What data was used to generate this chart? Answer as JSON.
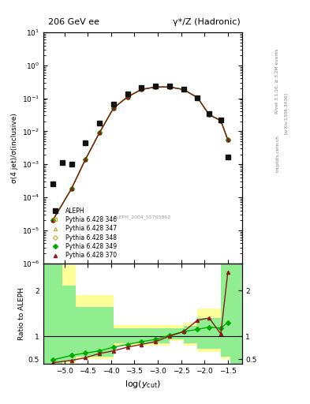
{
  "title_left": "206 GeV ee",
  "title_right": "γ*/Z (Hadronic)",
  "right_label_top": "Rivet 3.1.10, ≥ 3.2M events",
  "right_label_mid": "[arXiv:1306.3436]",
  "right_label_bot": "mcplots.cern.ch",
  "ylabel_main": "σ(4 jet)/σ(inclusive)",
  "ylabel_ratio": "Ratio to ALEPH",
  "xlabel": "log(y_{cut})",
  "watermark": "ALEPH_2004_S5765862",
  "xlim": [
    -5.45,
    -1.2
  ],
  "ylim_main": [
    1e-06,
    10
  ],
  "ylim_ratio": [
    0.4,
    2.6
  ],
  "aleph_x": [
    -5.25,
    -4.85,
    -4.55,
    -4.25,
    -3.95,
    -3.65,
    -3.35,
    -3.05,
    -2.75,
    -2.45,
    -2.15,
    -1.9,
    -1.65,
    -1.5
  ],
  "aleph_y": [
    0.00025,
    0.001,
    0.0045,
    0.018,
    0.065,
    0.135,
    0.21,
    0.24,
    0.23,
    0.19,
    0.105,
    0.035,
    0.022,
    0.0017
  ],
  "aleph_x2": [
    -5.05
  ],
  "aleph_y2": [
    0.0011
  ],
  "pythia_x": [
    -5.25,
    -4.85,
    -4.55,
    -4.25,
    -3.95,
    -3.65,
    -3.35,
    -3.05,
    -2.75,
    -2.45,
    -2.15,
    -1.9,
    -1.65,
    -1.5
  ],
  "p349_y": [
    2e-05,
    0.00018,
    0.0014,
    0.009,
    0.05,
    0.11,
    0.185,
    0.22,
    0.22,
    0.185,
    0.105,
    0.032,
    0.021,
    0.0055
  ],
  "p370_y": [
    2e-05,
    0.00018,
    0.0014,
    0.009,
    0.05,
    0.11,
    0.185,
    0.22,
    0.22,
    0.185,
    0.105,
    0.032,
    0.021,
    0.0055
  ],
  "ratio_x": [
    -5.25,
    -4.85,
    -4.55,
    -4.25,
    -3.95,
    -3.65,
    -3.35,
    -3.05,
    -2.75,
    -2.45,
    -2.15,
    -1.9,
    -1.65,
    -1.5
  ],
  "ratio_p349": [
    0.48,
    0.58,
    0.63,
    0.68,
    0.76,
    0.82,
    0.88,
    0.93,
    1.02,
    1.1,
    1.15,
    1.2,
    1.18,
    1.3
  ],
  "ratio_p370": [
    0.42,
    0.47,
    0.53,
    0.62,
    0.68,
    0.76,
    0.82,
    0.88,
    1.0,
    1.1,
    1.35,
    1.4,
    1.05,
    2.4
  ],
  "band_x_lo": [
    -5.45,
    -5.05,
    -4.75,
    -3.95,
    -2.75,
    -2.45,
    -2.15,
    -1.65,
    -1.45
  ],
  "band_x_hi": [
    -5.05,
    -4.75,
    -3.95,
    -2.75,
    -2.45,
    -2.15,
    -1.65,
    -1.45,
    -1.2
  ],
  "band_yellow_lo": [
    0.4,
    0.4,
    0.5,
    0.8,
    0.9,
    0.8,
    0.65,
    0.5,
    0.4
  ],
  "band_yellow_hi": [
    2.6,
    2.6,
    1.9,
    1.25,
    1.25,
    1.3,
    1.6,
    2.6,
    2.6
  ],
  "band_green_lo": [
    0.4,
    0.45,
    0.55,
    0.85,
    0.93,
    0.85,
    0.72,
    0.55,
    0.4
  ],
  "band_green_hi": [
    2.6,
    2.1,
    1.65,
    1.18,
    1.18,
    1.22,
    1.4,
    2.6,
    2.6
  ],
  "color_p346": "#c8a000",
  "color_p347": "#b8a000",
  "color_p348": "#aaaa00",
  "color_p349": "#00aa00",
  "color_p370": "#8b1a1a",
  "color_aleph": "#111111",
  "color_band_yellow": "#ffff99",
  "color_band_green": "#90ee90",
  "bg_color": "#ffffff"
}
